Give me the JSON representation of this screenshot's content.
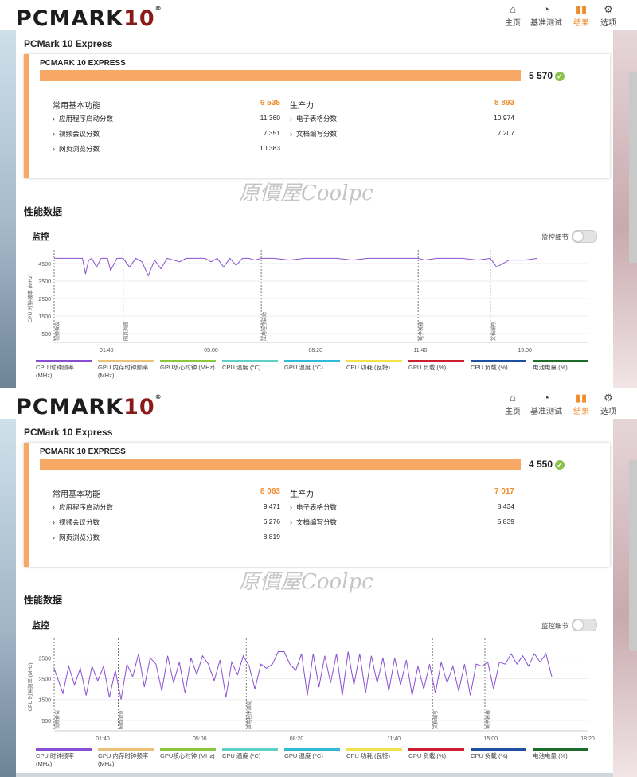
{
  "nav": {
    "home": "主页",
    "benchmark": "基准测试",
    "results": "结果",
    "options": "选项"
  },
  "logo": {
    "text": "PCMARK",
    "num": "10",
    "reg": "®"
  },
  "watermark": "原價屋Coolpc",
  "panels": [
    {
      "section_title": "PCMark 10 Express",
      "card_label": "PCMARK 10 EXPRESS",
      "total": "5 570",
      "bar_fraction": 1.0,
      "cat1": {
        "label": "常用基本功能",
        "value": "9 535"
      },
      "cat2": {
        "label": "生产力",
        "value": "8 893"
      },
      "sub1": [
        {
          "label": "应用程序启动分数",
          "value": "11 360"
        },
        {
          "label": "视频会议分数",
          "value": "7 351"
        },
        {
          "label": "网页浏览分数",
          "value": "10 383"
        }
      ],
      "sub2": [
        {
          "label": "电子表格分数",
          "value": "10 974"
        },
        {
          "label": "文档编写分数",
          "value": "7 207"
        }
      ],
      "perf_title": "性能数据",
      "monitor_title": "监控",
      "toggle_label": "监控细节",
      "chart_data": {
        "type": "line",
        "ylabel": "CPU 时钟频率 (MHz)",
        "yticks": [
          "4500",
          "3500",
          "2500",
          "1500",
          "500"
        ],
        "ytick_vals": [
          4500,
          3500,
          2500,
          1500,
          500
        ],
        "ylim": [
          0,
          5000
        ],
        "xlim": [
          0,
          17
        ],
        "xticks": [
          {
            "label": "01:40",
            "v": 1.67
          },
          {
            "label": "05:00",
            "v": 5
          },
          {
            "label": "08:20",
            "v": 8.33
          },
          {
            "label": "11:40",
            "v": 11.67
          },
          {
            "label": "15:00",
            "v": 15
          }
        ],
        "markers": [
          {
            "label": "视频会议",
            "v": 0
          },
          {
            "label": "网页浏览",
            "v": 2.2
          },
          {
            "label": "应用程序启动",
            "v": 6.6
          },
          {
            "label": "电子表格",
            "v": 11.6
          },
          {
            "label": "文档编写",
            "v": 13.9
          }
        ],
        "series": [
          {
            "name": "CPU 时钟频率 (MHz)",
            "color": "#8a4fd1",
            "x": [
              0.0,
              0.9,
              1.0,
              1.1,
              1.2,
              1.35,
              1.5,
              1.7,
              1.8,
              2.0,
              2.1,
              2.2,
              2.4,
              2.6,
              2.8,
              3.0,
              3.2,
              3.4,
              3.6,
              3.8,
              4.0,
              4.2,
              4.4,
              4.6,
              4.8,
              5.0,
              5.2,
              5.4,
              5.6,
              5.8,
              6.0,
              6.2,
              6.4,
              6.6,
              7.0,
              7.5,
              8.0,
              8.5,
              9.0,
              9.5,
              10.0,
              10.5,
              11.0,
              11.6,
              11.8,
              12.2,
              12.6,
              13.0,
              13.5,
              13.9,
              14.1,
              14.5,
              15.0,
              15.4
            ],
            "y": [
              4800,
              4800,
              3900,
              4700,
              4800,
              4300,
              4800,
              4800,
              4100,
              4800,
              4800,
              4800,
              4300,
              4800,
              4600,
              3800,
              4700,
              4200,
              4800,
              4700,
              4600,
              4800,
              4800,
              4800,
              4800,
              4600,
              4800,
              4300,
              4800,
              4400,
              4800,
              4800,
              4700,
              4800,
              4800,
              4700,
              4800,
              4800,
              4800,
              4700,
              4800,
              4800,
              4800,
              4800,
              4700,
              4800,
              4800,
              4800,
              4700,
              4800,
              4300,
              4700,
              4700,
              4800
            ]
          }
        ]
      },
      "legend": [
        "CPU 时钟频率 (MHz)",
        "GPU 内存时钟频率 (MHz)",
        "GPU核心时钟 (MHz)",
        "CPU 温度 (°C)",
        "GPU 温度 (°C)",
        "CPU 功耗 (瓦特)",
        "GPU 负载 (%)",
        "CPU 负载 (%)",
        "电池电量 (%)"
      ],
      "legend_colors": [
        "#8a4fd1",
        "#e8c27a",
        "#8dc63f",
        "#5fd0c8",
        "#33b8d6",
        "#f3e14a",
        "#cc1f2f",
        "#1f4fa3",
        "#1f6b2a"
      ]
    },
    {
      "section_title": "PCMark 10 Express",
      "card_label": "PCMARK 10 EXPRESS",
      "total": "4 550",
      "bar_fraction": 1.0,
      "cat1": {
        "label": "常用基本功能",
        "value": "8 063"
      },
      "cat2": {
        "label": "生产力",
        "value": "7 017"
      },
      "sub1": [
        {
          "label": "应用程序启动分数",
          "value": "9 471"
        },
        {
          "label": "视频会议分数",
          "value": "6 276"
        },
        {
          "label": "网页浏览分数",
          "value": "8 819"
        }
      ],
      "sub2": [
        {
          "label": "电子表格分数",
          "value": "8 434"
        },
        {
          "label": "文档编写分数",
          "value": "5 839"
        }
      ],
      "perf_title": "性能数据",
      "monitor_title": "监控",
      "toggle_label": "监控细节",
      "chart_data": {
        "type": "line",
        "ylabel": "CPU 时钟频率 (MHz)",
        "yticks": [
          "3500",
          "2500",
          "1500",
          "500"
        ],
        "ytick_vals": [
          3500,
          2500,
          1500,
          500
        ],
        "ylim": [
          0,
          4200
        ],
        "xlim": [
          0,
          18.33
        ],
        "xticks": [
          {
            "label": "01:40",
            "v": 1.67
          },
          {
            "label": "05:00",
            "v": 5
          },
          {
            "label": "08:20",
            "v": 8.33
          },
          {
            "label": "11:40",
            "v": 11.67
          },
          {
            "label": "15:00",
            "v": 15
          },
          {
            "label": "18:20",
            "v": 18.33
          }
        ],
        "markers": [
          {
            "label": "视频会议",
            "v": 0
          },
          {
            "label": "网页浏览",
            "v": 2.2
          },
          {
            "label": "应用程序启动",
            "v": 6.6
          },
          {
            "label": "文档编写",
            "v": 13.0
          },
          {
            "label": "电子表格",
            "v": 14.8
          }
        ],
        "series": [
          {
            "name": "CPU 时钟频率 (MHz)",
            "color": "#8a4fd1",
            "x": [
              0.0,
              0.3,
              0.5,
              0.7,
              0.9,
              1.1,
              1.3,
              1.5,
              1.7,
              1.9,
              2.1,
              2.3,
              2.5,
              2.7,
              2.9,
              3.1,
              3.3,
              3.5,
              3.7,
              3.9,
              4.1,
              4.3,
              4.5,
              4.7,
              4.9,
              5.1,
              5.3,
              5.5,
              5.7,
              5.9,
              6.1,
              6.3,
              6.5,
              6.7,
              6.9,
              7.1,
              7.3,
              7.5,
              7.7,
              7.9,
              8.1,
              8.3,
              8.5,
              8.7,
              8.9,
              9.1,
              9.3,
              9.5,
              9.7,
              9.9,
              10.1,
              10.3,
              10.5,
              10.7,
              10.9,
              11.1,
              11.3,
              11.5,
              11.7,
              11.9,
              12.1,
              12.3,
              12.5,
              12.7,
              12.9,
              13.1,
              13.3,
              13.5,
              13.7,
              13.9,
              14.1,
              14.3,
              14.5,
              14.7,
              14.9,
              15.1,
              15.3,
              15.5,
              15.7,
              15.9,
              16.1,
              16.3,
              16.5,
              16.7,
              16.9,
              17.1
            ],
            "y": [
              3000,
              1800,
              3100,
              2200,
              3000,
              1700,
              3100,
              2400,
              3100,
              1600,
              2900,
              1500,
              3200,
              2600,
              3700,
              2100,
              3500,
              3200,
              1900,
              3600,
              2300,
              3300,
              1800,
              3500,
              2700,
              3600,
              3200,
              2400,
              3400,
              1600,
              3300,
              2700,
              3600,
              3100,
              2000,
              3200,
              3000,
              3200,
              3800,
              3800,
              3200,
              2900,
              3700,
              1700,
              3700,
              2100,
              3600,
              2300,
              3700,
              1700,
              3800,
              2200,
              3700,
              1800,
              3600,
              2300,
              3500,
              1900,
              3500,
              2200,
              3400,
              1700,
              3100,
              2000,
              3200,
              1800,
              3300,
              2300,
              3100,
              1900,
              3200,
              1700,
              3200,
              3100,
              3300,
              2000,
              3300,
              3200,
              3700,
              3200,
              3600,
              3100,
              3700,
              3300,
              3700,
              2600
            ]
          }
        ]
      },
      "legend": [
        "CPU 时钟频率 (MHz)",
        "GPU 内存时钟频率 (MHz)",
        "GPU核心时钟 (MHz)",
        "CPU 温度 (°C)",
        "GPU 温度 (°C)",
        "CPU 功耗 (瓦特)",
        "GPU 负载 (%)",
        "CPU 负载 (%)",
        "电池电量 (%)"
      ],
      "legend_colors": [
        "#8a4fd1",
        "#e8c27a",
        "#8dc63f",
        "#5fd0c8",
        "#33b8d6",
        "#f3e14a",
        "#cc1f2f",
        "#1f4fa3",
        "#1f6b2a"
      ]
    }
  ]
}
